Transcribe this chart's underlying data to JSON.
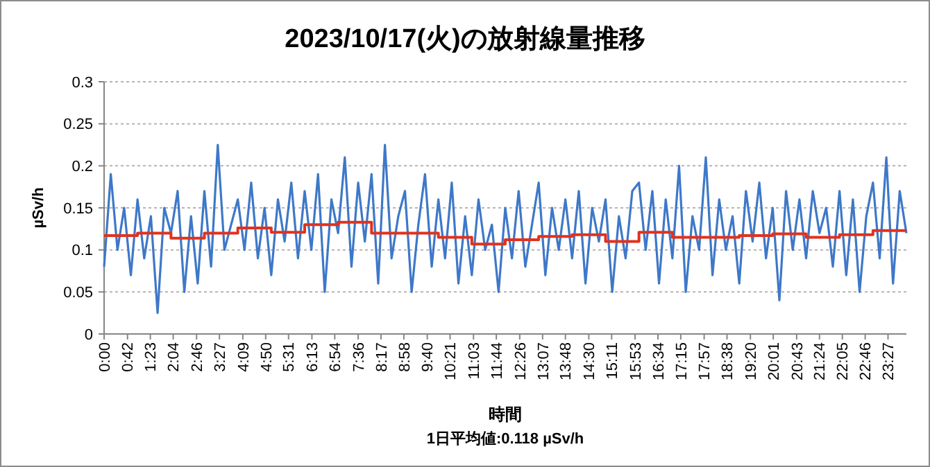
{
  "chart_data": {
    "type": "line",
    "title": "2023/10/17(火)の放射線量推移",
    "xlabel": "時間",
    "ylabel": "µSv/h",
    "annotations": [
      "1日平均値:0.118 µSv/h"
    ],
    "xlim": [
      0,
      24
    ],
    "ylim": [
      0,
      0.3
    ],
    "yticks": [
      0,
      0.05,
      0.1,
      0.15,
      0.2,
      0.25,
      0.3
    ],
    "xticks": [
      {
        "value": 0,
        "label": "0:00"
      },
      {
        "value": 0.7,
        "label": "0:42"
      },
      {
        "value": 1.383,
        "label": "1:23"
      },
      {
        "value": 2.067,
        "label": "2:04"
      },
      {
        "value": 2.767,
        "label": "2:46"
      },
      {
        "value": 3.45,
        "label": "3:27"
      },
      {
        "value": 4.15,
        "label": "4:09"
      },
      {
        "value": 4.833,
        "label": "4:50"
      },
      {
        "value": 5.517,
        "label": "5:31"
      },
      {
        "value": 6.217,
        "label": "6:13"
      },
      {
        "value": 6.9,
        "label": "6:54"
      },
      {
        "value": 7.6,
        "label": "7:36"
      },
      {
        "value": 8.283,
        "label": "8:17"
      },
      {
        "value": 8.967,
        "label": "8:58"
      },
      {
        "value": 9.667,
        "label": "9:40"
      },
      {
        "value": 10.35,
        "label": "10:21"
      },
      {
        "value": 11.05,
        "label": "11:03"
      },
      {
        "value": 11.733,
        "label": "11:44"
      },
      {
        "value": 12.433,
        "label": "12:26"
      },
      {
        "value": 13.117,
        "label": "13:07"
      },
      {
        "value": 13.8,
        "label": "13:48"
      },
      {
        "value": 14.5,
        "label": "14:30"
      },
      {
        "value": 15.183,
        "label": "15:11"
      },
      {
        "value": 15.883,
        "label": "15:53"
      },
      {
        "value": 16.567,
        "label": "16:34"
      },
      {
        "value": 17.25,
        "label": "17:15"
      },
      {
        "value": 17.95,
        "label": "17:57"
      },
      {
        "value": 18.633,
        "label": "18:38"
      },
      {
        "value": 19.333,
        "label": "19:20"
      },
      {
        "value": 20.017,
        "label": "20:01"
      },
      {
        "value": 20.717,
        "label": "20:43"
      },
      {
        "value": 21.4,
        "label": "21:24"
      },
      {
        "value": 22.083,
        "label": "22:05"
      },
      {
        "value": 22.767,
        "label": "22:46"
      },
      {
        "value": 23.45,
        "label": "23:27"
      }
    ],
    "grid": "y",
    "marker": "none",
    "line_style": "solid",
    "series": [
      {
        "color": "#3e78c8",
        "x": [
          0,
          0.2,
          0.4,
          0.6,
          0.8,
          1,
          1.2,
          1.4,
          1.6,
          1.8,
          2,
          2.2,
          2.4,
          2.6,
          2.8,
          3,
          3.2,
          3.4,
          3.6,
          3.8,
          4,
          4.2,
          4.4,
          4.6,
          4.8,
          5,
          5.2,
          5.4,
          5.6,
          5.8,
          6,
          6.2,
          6.4,
          6.6,
          6.8,
          7,
          7.2,
          7.4,
          7.6,
          7.8,
          8,
          8.2,
          8.4,
          8.6,
          8.8,
          9,
          9.2,
          9.4,
          9.6,
          9.8,
          10,
          10.2,
          10.4,
          10.6,
          10.8,
          11,
          11.2,
          11.4,
          11.6,
          11.8,
          12,
          12.2,
          12.4,
          12.6,
          12.8,
          13,
          13.2,
          13.4,
          13.6,
          13.8,
          14,
          14.2,
          14.4,
          14.6,
          14.8,
          15,
          15.2,
          15.4,
          15.6,
          15.8,
          16,
          16.2,
          16.4,
          16.6,
          16.8,
          17,
          17.2,
          17.4,
          17.6,
          17.8,
          18,
          18.2,
          18.4,
          18.6,
          18.8,
          19,
          19.2,
          19.4,
          19.6,
          19.8,
          20,
          20.2,
          20.4,
          20.6,
          20.8,
          21,
          21.2,
          21.4,
          21.6,
          21.8,
          22,
          22.2,
          22.4,
          22.6,
          22.8,
          23,
          23.2,
          23.4,
          23.6,
          23.8,
          24
        ],
        "values": [
          0.08,
          0.19,
          0.1,
          0.15,
          0.07,
          0.16,
          0.09,
          0.14,
          0.025,
          0.15,
          0.12,
          0.17,
          0.05,
          0.14,
          0.06,
          0.17,
          0.08,
          0.225,
          0.1,
          0.13,
          0.16,
          0.1,
          0.18,
          0.09,
          0.15,
          0.07,
          0.16,
          0.11,
          0.18,
          0.09,
          0.17,
          0.1,
          0.19,
          0.05,
          0.16,
          0.12,
          0.21,
          0.08,
          0.18,
          0.11,
          0.19,
          0.06,
          0.225,
          0.09,
          0.14,
          0.17,
          0.05,
          0.13,
          0.19,
          0.08,
          0.16,
          0.09,
          0.18,
          0.06,
          0.14,
          0.07,
          0.16,
          0.1,
          0.13,
          0.05,
          0.15,
          0.09,
          0.17,
          0.08,
          0.13,
          0.18,
          0.07,
          0.15,
          0.1,
          0.16,
          0.09,
          0.17,
          0.06,
          0.15,
          0.11,
          0.16,
          0.05,
          0.14,
          0.09,
          0.17,
          0.18,
          0.1,
          0.17,
          0.06,
          0.16,
          0.09,
          0.2,
          0.05,
          0.14,
          0.1,
          0.21,
          0.07,
          0.16,
          0.1,
          0.14,
          0.06,
          0.17,
          0.11,
          0.18,
          0.09,
          0.15,
          0.04,
          0.17,
          0.1,
          0.16,
          0.09,
          0.17,
          0.12,
          0.15,
          0.08,
          0.17,
          0.07,
          0.16,
          0.05,
          0.14,
          0.18,
          0.09,
          0.21,
          0.06,
          0.17,
          0.12
        ]
      },
      {
        "type": "step",
        "color": "#e0321e",
        "x": [
          0,
          1,
          2,
          3,
          4,
          5,
          6,
          7,
          8,
          9,
          10,
          11,
          12,
          13,
          14,
          15,
          16,
          17,
          18,
          19,
          20,
          21,
          22,
          23,
          24
        ],
        "values": [
          0.117,
          0.12,
          0.114,
          0.12,
          0.126,
          0.121,
          0.13,
          0.133,
          0.12,
          0.12,
          0.115,
          0.107,
          0.112,
          0.116,
          0.118,
          0.11,
          0.121,
          0.115,
          0.115,
          0.117,
          0.119,
          0.115,
          0.118,
          0.123,
          0.123
        ]
      }
    ]
  }
}
